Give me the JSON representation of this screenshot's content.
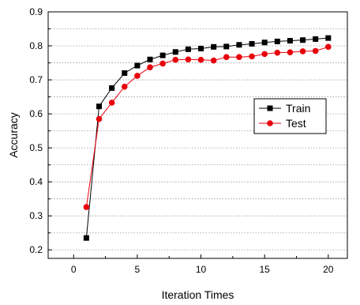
{
  "chart_data": {
    "type": "line",
    "title": "",
    "xlabel": "Iteration Times",
    "ylabel": "Accuracy",
    "xlim": [
      -2,
      21.5
    ],
    "ylim": [
      0.175,
      0.9
    ],
    "xticks": [
      0,
      5,
      10,
      15,
      20
    ],
    "yticks": [
      0.2,
      0.3,
      0.4,
      0.5,
      0.6,
      0.7,
      0.8,
      0.9
    ],
    "grid": "horizontal dotted",
    "legend": "center-right",
    "x": [
      1,
      2,
      3,
      4,
      5,
      6,
      7,
      8,
      9,
      10,
      11,
      12,
      13,
      14,
      15,
      16,
      17,
      18,
      19,
      20
    ],
    "series": [
      {
        "name": "Train",
        "color": "#000000",
        "marker": "square",
        "values": [
          0.235,
          0.622,
          0.676,
          0.72,
          0.742,
          0.76,
          0.772,
          0.782,
          0.79,
          0.792,
          0.797,
          0.798,
          0.803,
          0.806,
          0.81,
          0.813,
          0.815,
          0.817,
          0.82,
          0.823
        ]
      },
      {
        "name": "Test",
        "color": "#e8000b",
        "marker": "circle",
        "values": [
          0.326,
          0.585,
          0.633,
          0.68,
          0.712,
          0.737,
          0.748,
          0.759,
          0.76,
          0.759,
          0.757,
          0.767,
          0.767,
          0.769,
          0.776,
          0.78,
          0.781,
          0.784,
          0.785,
          0.797
        ]
      }
    ]
  }
}
